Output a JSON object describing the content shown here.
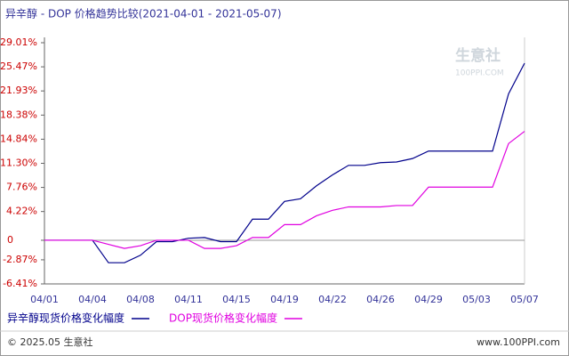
{
  "chart_data": {
    "type": "line",
    "title": "异辛醇 - DOP 价格趋势比较(2021-04-01 - 2021-05-07)",
    "categories": [
      "04/01",
      null,
      null,
      "04/04",
      null,
      null,
      "04/08",
      null,
      null,
      "04/11",
      null,
      null,
      "04/15",
      null,
      null,
      "04/19",
      null,
      null,
      "04/22",
      null,
      null,
      "04/26",
      null,
      null,
      "04/29",
      null,
      null,
      "05/03",
      null,
      null,
      "05/07"
    ],
    "series": [
      {
        "name": "异辛醇现货价格变化幅度",
        "color": "#00008b",
        "values": [
          0,
          0,
          0,
          0,
          -3.3,
          -3.3,
          -2.2,
          -0.2,
          -0.2,
          0.3,
          0.4,
          -0.2,
          -0.2,
          3.1,
          3.1,
          5.7,
          6.1,
          8,
          9.6,
          11,
          11,
          11.4,
          11.5,
          12,
          13.1,
          13.1,
          13.1,
          13.1,
          13.1,
          21.5,
          26
        ]
      },
      {
        "name": "DOP现货价格变化幅度",
        "color": "#e000e0",
        "values": [
          0,
          0,
          0,
          0,
          -0.6,
          -1.2,
          -0.8,
          0,
          0,
          0,
          -1.2,
          -1.2,
          -0.8,
          0.4,
          0.4,
          2.3,
          2.3,
          3.6,
          4.4,
          4.9,
          4.9,
          4.9,
          5.1,
          5.1,
          7.8,
          7.8,
          7.8,
          7.8,
          7.8,
          14.2,
          16
        ]
      }
    ],
    "ylim": [
      -6.41,
      29.01
    ],
    "yticks": [
      {
        "value": 29.01,
        "label": "29.01%"
      },
      {
        "value": 25.47,
        "label": "25.47%"
      },
      {
        "value": 21.93,
        "label": "21.93%"
      },
      {
        "value": 18.38,
        "label": "18.38%"
      },
      {
        "value": 14.84,
        "label": "14.84%"
      },
      {
        "value": 11.3,
        "label": "11.30%"
      },
      {
        "value": 7.76,
        "label": "7.76%"
      },
      {
        "value": 4.22,
        "label": "4.22%"
      },
      0,
      {
        "value": -2.87,
        "label": "-2.87%"
      },
      {
        "value": -6.41,
        "label": "-6.41%"
      }
    ],
    "grid": false,
    "watermark": "生意社",
    "watermark_sub": "100PPI.COM",
    "footer_left": "© 2025.05 生意社",
    "footer_right": "www.100PPI.com"
  }
}
